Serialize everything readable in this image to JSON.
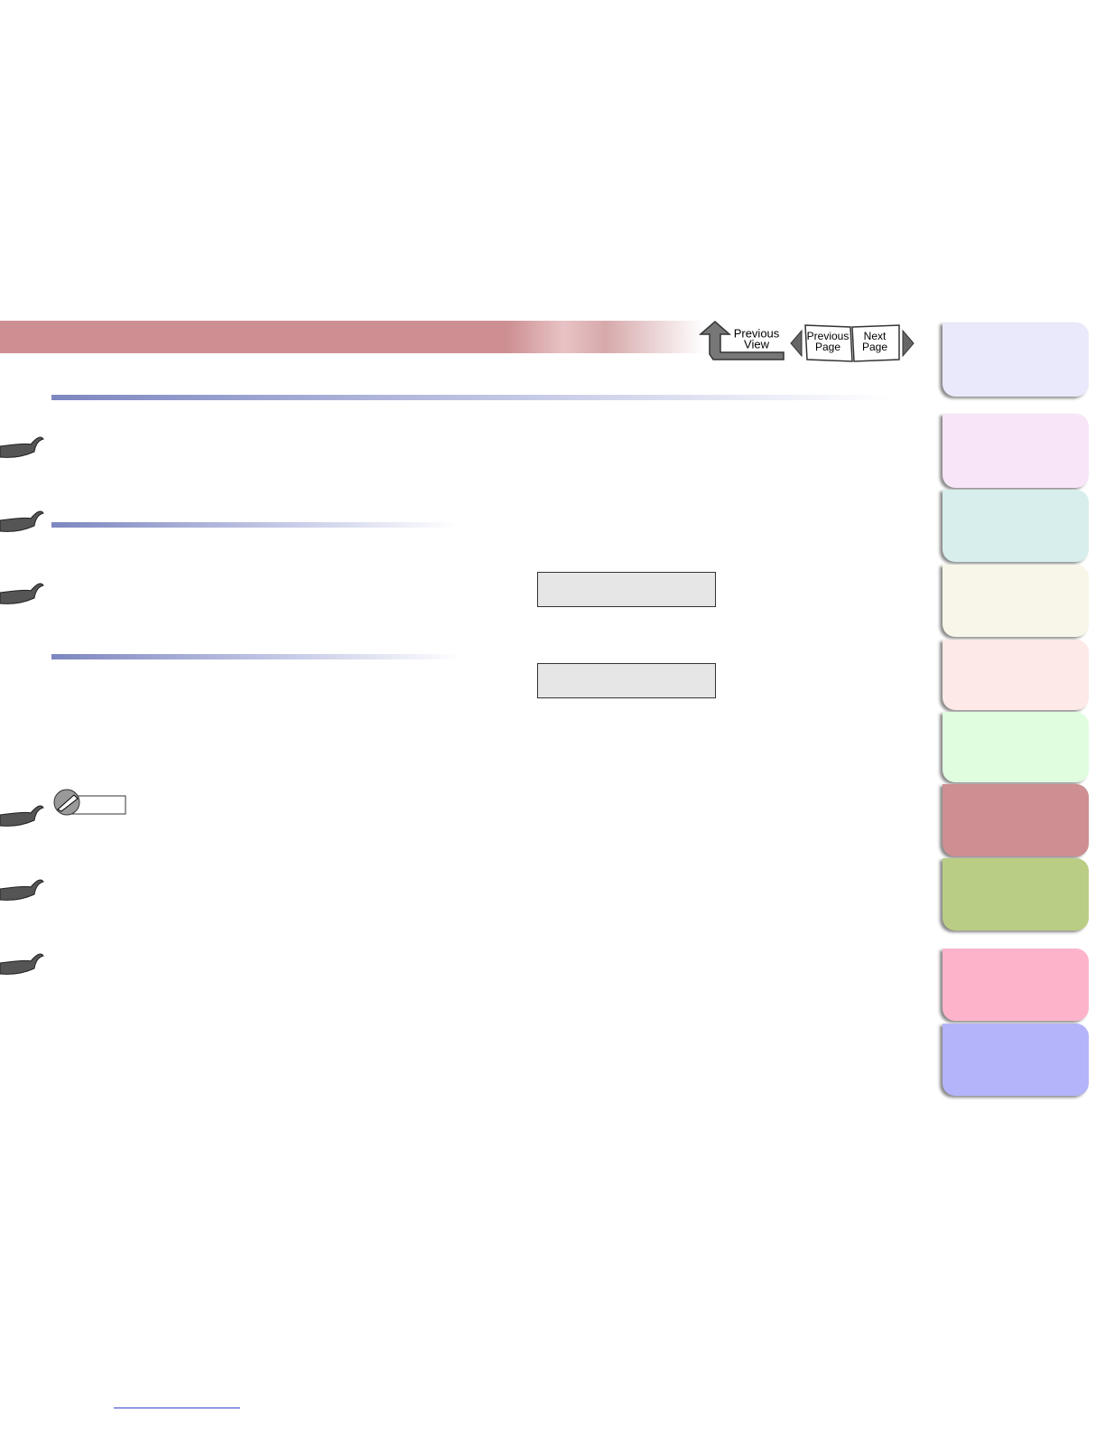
{
  "nav": {
    "previous_view": [
      "Previous",
      "View"
    ],
    "previous_page": [
      "Previous",
      "Page"
    ],
    "next_page": [
      "Next",
      "Page"
    ]
  }
}
